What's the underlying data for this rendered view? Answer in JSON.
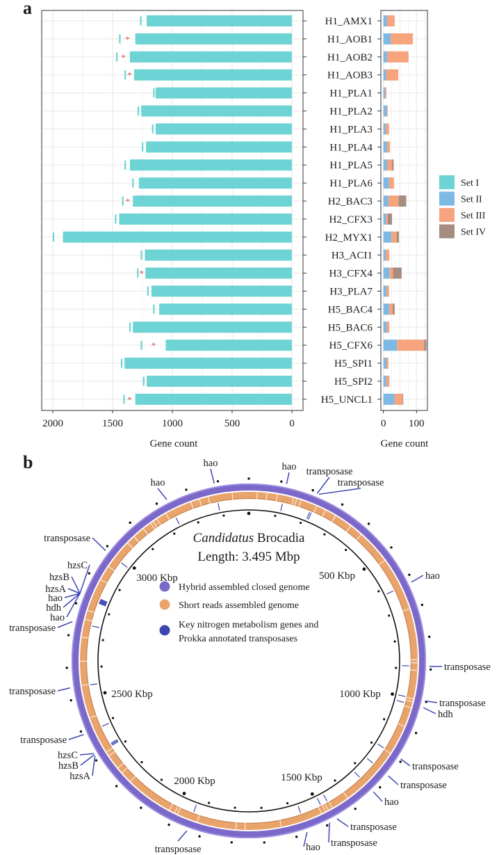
{
  "panel_a": {
    "label": "a",
    "legend": [
      {
        "name": "Set I",
        "color": "#6dd3d4"
      },
      {
        "name": "Set II",
        "color": "#7db9e5"
      },
      {
        "name": "Set III",
        "color": "#f6a47e"
      },
      {
        "name": "Set IV",
        "color": "#a78c80"
      }
    ]
  },
  "chart_data": [
    {
      "type": "bar",
      "orientation": "horizontal-reversed",
      "categories": [
        "H1_AMX1",
        "H1_AOB1",
        "H1_AOB2",
        "H1_AOB3",
        "H1_PLA1",
        "H1_PLA2",
        "H1_PLA3",
        "H1_PLA4",
        "H1_PLA5",
        "H1_PLA6",
        "H2_BAC3",
        "H2_CFX3",
        "H2_MYX1",
        "H3_ACI1",
        "H3_CFX4",
        "H3_PLA7",
        "H5_BAC4",
        "H5_BAC6",
        "H5_CFX6",
        "H5_SPI1",
        "H5_SPI2",
        "H5_UNCL1"
      ],
      "series": [
        {
          "name": "Set I",
          "values": [
            1215,
            1310,
            1355,
            1320,
            1140,
            1260,
            1140,
            1220,
            1355,
            1280,
            1330,
            1445,
            1915,
            1230,
            1225,
            1175,
            1110,
            1330,
            1055,
            1400,
            1215,
            1310
          ]
        }
      ],
      "marker_values": [
        1265,
        1440,
        1465,
        1395,
        1155,
        1285,
        1165,
        1250,
        1395,
        1330,
        1415,
        1475,
        1995,
        1260,
        1290,
        1205,
        1155,
        1355,
        1260,
        1425,
        1240,
        1405
      ],
      "significant": [
        false,
        true,
        true,
        true,
        false,
        false,
        false,
        false,
        false,
        false,
        true,
        false,
        false,
        false,
        true,
        false,
        false,
        false,
        true,
        false,
        false,
        true
      ],
      "significance_symbol": "*",
      "xlabel": "Gene count",
      "xticks": [
        "2000",
        "1500",
        "1000",
        "500",
        "0"
      ],
      "xtick_values": [
        2000,
        1500,
        1000,
        500,
        0
      ],
      "xlim": [
        2070,
        0
      ],
      "grid": true
    },
    {
      "type": "bar",
      "stacked": true,
      "categories": [
        "H1_AMX1",
        "H1_AOB1",
        "H1_AOB2",
        "H1_AOB3",
        "H1_PLA1",
        "H1_PLA2",
        "H1_PLA3",
        "H1_PLA4",
        "H1_PLA5",
        "H1_PLA6",
        "H2_BAC3",
        "H2_CFX3",
        "H2_MYX1",
        "H3_ACI1",
        "H3_CFX4",
        "H3_PLA7",
        "H5_BAC4",
        "H5_BAC6",
        "H5_CFX6",
        "H5_SPI1",
        "H5_SPI2",
        "H5_UNCL1"
      ],
      "series": [
        {
          "name": "Set II",
          "values": [
            11,
            22,
            11,
            8,
            5,
            10,
            7,
            11,
            11,
            17,
            15,
            8,
            24,
            7,
            18,
            9,
            17,
            10,
            41,
            9,
            8,
            33
          ]
        },
        {
          "name": "Set III",
          "values": [
            23,
            67,
            65,
            37,
            4,
            3,
            10,
            9,
            15,
            15,
            31,
            5,
            16,
            11,
            11,
            8,
            11,
            8,
            82,
            6,
            9,
            25
          ]
        },
        {
          "name": "Set IV",
          "values": [
            0,
            0,
            0,
            0,
            0,
            0,
            0,
            0,
            5,
            0,
            23,
            13,
            7,
            0,
            26,
            0,
            6,
            0,
            7,
            0,
            1,
            2
          ]
        }
      ],
      "xlabel": "Gene count",
      "xticks": [
        "0",
        "100"
      ],
      "xtick_values": [
        0,
        100
      ],
      "xlim": [
        -7,
        133
      ],
      "grid": true,
      "legend_position": "right"
    },
    {
      "type": "circular-genome-map",
      "label": "b",
      "title_italic": "Candidatus",
      "title_rest": " Brocadia",
      "length_text": "Length: 3.495 Mbp",
      "genome_length_kbp": 3495,
      "scale_labels": [
        "500 Kbp",
        "1000 Kbp",
        "1500 Kbp",
        "2000 Kbp",
        "2500 Kbp",
        "3000 Kbp"
      ],
      "legend": [
        {
          "lines": [
            "Hybrid assembled closed genome"
          ],
          "color": "#7b68c9"
        },
        {
          "lines": [
            "Short reads assembled genome"
          ],
          "color": "#e9a46c"
        },
        {
          "lines": [
            "Key nitrogen metabolism genes and",
            "Prokka annotated transposases"
          ],
          "color": "#3a45b0"
        }
      ],
      "short_read_gaps_kbp": [
        28,
        60,
        95,
        150,
        160,
        175,
        230,
        262,
        300,
        360,
        405,
        520,
        700,
        870,
        880,
        905,
        1000,
        1010,
        1030,
        1095,
        1195,
        1400,
        1460,
        1475,
        1485,
        1500,
        1640,
        1760,
        1790,
        1920,
        1990,
        2000,
        2020,
        2180,
        2220,
        2240,
        2290,
        2305,
        2430,
        2540,
        2620,
        2700,
        2760,
        2790,
        2900,
        2950,
        3050,
        3080,
        3120,
        3150,
        3160,
        3175,
        3210,
        3300,
        3330,
        3360,
        3440
      ],
      "genes": [
        {
          "label": "hao",
          "kbp": 117
        },
        {
          "label": "transposase",
          "kbp": 216
        },
        {
          "label": "transposase",
          "kbp": 222
        },
        {
          "label": "hao",
          "kbp": 623
        },
        {
          "label": "transposase",
          "kbp": 891
        },
        {
          "label": "transposase",
          "kbp": 998
        },
        {
          "label": "hdh",
          "kbp": 1019
        },
        {
          "label": "transposase",
          "kbp": 1192
        },
        {
          "label": "transposase",
          "kbp": 1257
        },
        {
          "label": "hao",
          "kbp": 1324
        },
        {
          "label": "transposase",
          "kbp": 1464
        },
        {
          "label": "transposase",
          "kbp": 1490
        },
        {
          "label": "hao",
          "kbp": 1565
        },
        {
          "label": "transposase",
          "kbp": 1942
        },
        {
          "label": "hzsA",
          "kbp": 2314
        },
        {
          "label": "hzsB",
          "kbp": 2318
        },
        {
          "label": "hzsC",
          "kbp": 2322
        },
        {
          "label": "transposase",
          "kbp": 2388
        },
        {
          "label": "transposase",
          "kbp": 2538
        },
        {
          "label": "transposase",
          "kbp": 2743
        },
        {
          "label": "hao",
          "kbp": 2825
        },
        {
          "label": "hdh",
          "kbp": 2828
        },
        {
          "label": "hao",
          "kbp": 2831
        },
        {
          "label": "hzsA",
          "kbp": 2834
        },
        {
          "label": "hzsB",
          "kbp": 2837
        },
        {
          "label": "hzsC",
          "kbp": 2840
        },
        {
          "label": "transposase",
          "kbp": 2986
        },
        {
          "label": "hao",
          "kbp": 3233
        },
        {
          "label": "hao",
          "kbp": 3388
        }
      ]
    }
  ],
  "colors": {
    "star": "#d0574f",
    "purple_ring": "#7b68c9",
    "orange_ring": "#e9a46c",
    "gene_marks": "#3a45b0"
  }
}
